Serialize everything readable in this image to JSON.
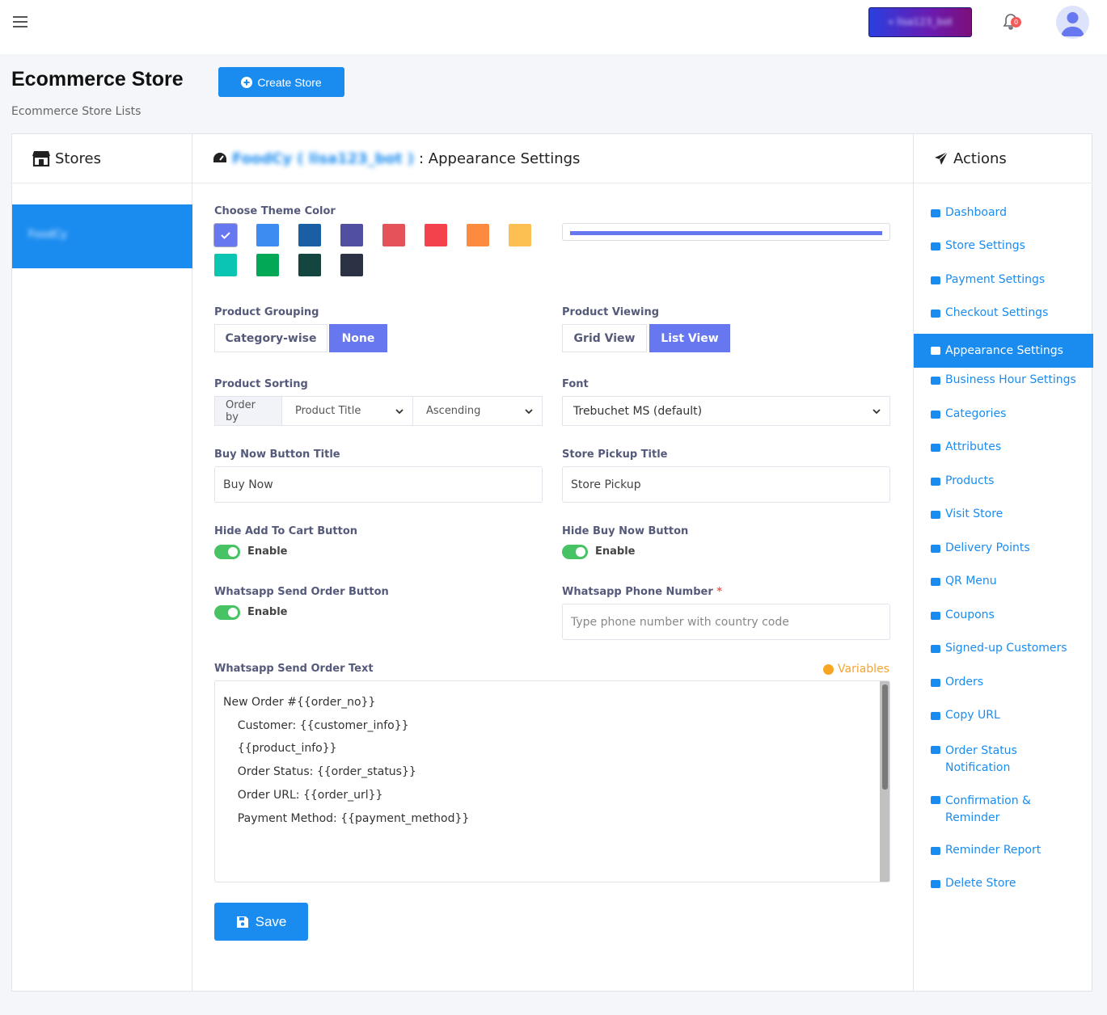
{
  "topbar": {
    "account_label": "« lisa123_bot",
    "notification_count": "0"
  },
  "header": {
    "title": "Ecommerce Store",
    "create_button": "Create Store",
    "subtitle": "Ecommerce Store Lists"
  },
  "stores": {
    "heading": "Stores",
    "items": [
      {
        "label": "FoodCy"
      }
    ]
  },
  "main": {
    "heading_store": "FoodCy ( lisa123_bot )",
    "heading_suffix": ": Appearance Settings",
    "theme_color_label": "Choose Theme Color",
    "theme_colors": [
      "#6777ef",
      "#3d8cf2",
      "#1a5fa3",
      "#514f9f",
      "#e5525a",
      "#f4424c",
      "#fc8b40",
      "#fcbf52",
      "#0ac5b2",
      "#03a857",
      "#12463f",
      "#2b3243"
    ],
    "selected_color": "#6777ef",
    "product_grouping": {
      "label": "Product Grouping",
      "options": [
        "Category-wise",
        "None"
      ],
      "selected": "None"
    },
    "product_viewing": {
      "label": "Product Viewing",
      "options": [
        "Grid View",
        "List View"
      ],
      "selected": "List View"
    },
    "product_sorting": {
      "label": "Product Sorting",
      "prefix": "Order by",
      "field": "Product Title",
      "direction": "Ascending"
    },
    "font": {
      "label": "Font",
      "value": "Trebuchet MS (default)"
    },
    "buy_now_title": {
      "label": "Buy Now Button Title",
      "value": "Buy Now"
    },
    "store_pickup_title": {
      "label": "Store Pickup Title",
      "value": "Store Pickup"
    },
    "hide_add_to_cart": {
      "label": "Hide Add To Cart Button",
      "toggle": "Enable"
    },
    "hide_buy_now": {
      "label": "Hide Buy Now Button",
      "toggle": "Enable"
    },
    "whatsapp_send": {
      "label": "Whatsapp Send Order Button",
      "toggle": "Enable"
    },
    "whatsapp_phone": {
      "label": "Whatsapp Phone Number",
      "required": "*",
      "placeholder": "Type phone number with country code"
    },
    "whatsapp_text": {
      "label": "Whatsapp Send Order Text",
      "variables": "Variables",
      "lines": [
        "New Order #{{order_no}}",
        "",
        "    Customer: {{customer_info}}",
        "",
        "    {{product_info}}",
        "",
        "    Order Status: {{order_status}}",
        "    Order URL: {{order_url}}",
        "    Payment Method: {{payment_method}}"
      ]
    },
    "save_button": "Save"
  },
  "actions": {
    "heading": "Actions",
    "items": [
      "Dashboard",
      "Store Settings",
      "Payment Settings",
      "Checkout Settings",
      "Appearance Settings",
      "Business Hour Settings",
      "Categories",
      "Attributes",
      "Products",
      "Visit Store",
      "Delivery Points",
      "QR Menu",
      "Coupons",
      "Signed-up Customers",
      "Orders",
      "Copy URL",
      "Order Status Notification",
      "Confirmation & Reminder",
      "Reminder Report",
      "Delete Store"
    ],
    "active": "Appearance Settings"
  }
}
